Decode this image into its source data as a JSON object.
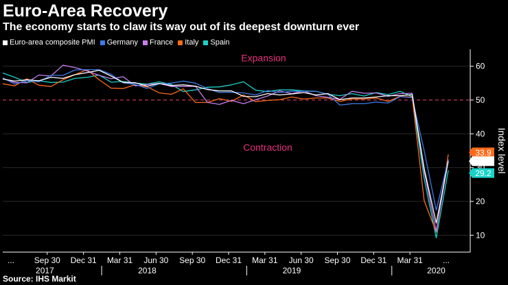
{
  "header": {
    "title": "Euro-Area Recovery",
    "subtitle": "The economy starts to claw its way out of its deepest downturn ever"
  },
  "footer": {
    "source": "Source: IHS Markit"
  },
  "chart_data": {
    "type": "line",
    "title": "Euro-Area Recovery",
    "subtitle": "The economy starts to claw its way out of its deepest downturn ever",
    "ylabel": "Index level",
    "ylim": [
      5,
      65
    ],
    "yticks": [
      10,
      20,
      30,
      40,
      50,
      60
    ],
    "reference_line": 50,
    "annotations": {
      "expansion": "Expansion",
      "contraction": "Contraction"
    },
    "quarter_labels": [
      "...",
      "Sep 30",
      "Dec 31",
      "Mar 31",
      "Jun 30",
      "Sep 30",
      "Dec 31",
      "Mar 31",
      "Jun 30",
      "Sep 30",
      "Dec 31",
      "Mar 31",
      "..."
    ],
    "year_labels": [
      {
        "label": "2017",
        "index": 3.5
      },
      {
        "label": "2018",
        "index": 12
      },
      {
        "label": "2019",
        "index": 24
      },
      {
        "label": "2020",
        "index": 36
      }
    ],
    "series": [
      {
        "name": "Euro-area composite PMI",
        "color": "#ffffff",
        "values": [
          56.2,
          55.6,
          56.0,
          55.7,
          56.7,
          56.4,
          57.5,
          58.1,
          58.8,
          57.1,
          55.2,
          55.1,
          54.1,
          54.9,
          54.3,
          54.5,
          54.1,
          53.1,
          52.7,
          52.7,
          51.1,
          51.0,
          51.9,
          51.5,
          51.8,
          52.2,
          51.5,
          51.9,
          50.1,
          50.6,
          50.6,
          50.9,
          51.3,
          51.3,
          51.6,
          29.7,
          13.6,
          31.9
        ]
      },
      {
        "name": "Germany",
        "color": "#3e7be8",
        "values": [
          56.6,
          54.7,
          55.8,
          55.4,
          57.3,
          57.3,
          58.9,
          59.0,
          59.0,
          57.6,
          55.1,
          54.6,
          53.4,
          54.8,
          55.0,
          55.6,
          55.0,
          53.4,
          52.2,
          52.3,
          52.1,
          51.5,
          52.8,
          52.2,
          52.6,
          52.6,
          52.6,
          51.7,
          48.5,
          48.9,
          48.9,
          49.4,
          49.1,
          51.0,
          50.7,
          35.0,
          17.4,
          32.3
        ]
      },
      {
        "name": "France",
        "color": "#c77ff0",
        "values": [
          56.3,
          55.2,
          55.1,
          57.4,
          57.1,
          60.3,
          59.6,
          58.6,
          57.3,
          56.3,
          56.9,
          54.2,
          54.6,
          54.9,
          54.0,
          54.0,
          54.1,
          49.3,
          48.7,
          49.9,
          48.9,
          50.1,
          51.2,
          52.7,
          51.9,
          52.7,
          51.3,
          50.8,
          50.2,
          52.6,
          52.0,
          52.1,
          51.1,
          51.9,
          52.0,
          28.9,
          11.1,
          32.4
        ]
      },
      {
        "name": "Italy",
        "color": "#ff6a1a",
        "values": [
          54.8,
          54.2,
          56.3,
          54.4,
          54.0,
          56.0,
          57.5,
          59.0,
          56.0,
          53.5,
          53.4,
          54.5,
          53.9,
          52.1,
          51.7,
          53.3,
          49.3,
          49.3,
          50.4,
          49.6,
          51.5,
          49.5,
          49.9,
          50.1,
          50.9,
          50.3,
          50.6,
          50.6,
          49.6,
          50.3,
          50.3,
          50.6,
          49.6,
          51.1,
          50.9,
          20.2,
          10.9,
          33.9
        ]
      },
      {
        "name": "Spain",
        "color": "#19d3c8",
        "values": [
          58.0,
          56.7,
          55.2,
          55.7,
          55.2,
          55.3,
          56.4,
          56.7,
          57.4,
          55.3,
          55.5,
          55.0,
          54.7,
          55.4,
          54.6,
          52.5,
          53.0,
          53.8,
          53.9,
          54.5,
          55.4,
          52.9,
          52.5,
          53.0,
          53.0,
          52.7,
          52.6,
          51.7,
          51.3,
          51.9,
          51.2,
          52.2,
          51.6,
          52.6,
          51.0,
          26.7,
          9.2,
          29.2
        ]
      }
    ],
    "end_labels": [
      {
        "text": "33.9",
        "series": "Italy",
        "color": "#ff6a1a"
      },
      {
        "text": "31.9",
        "series": "Euro-area composite PMI",
        "color": "#ffffff"
      },
      {
        "text": "29.2",
        "series": "Spain",
        "color": "#19d3c8"
      }
    ]
  }
}
